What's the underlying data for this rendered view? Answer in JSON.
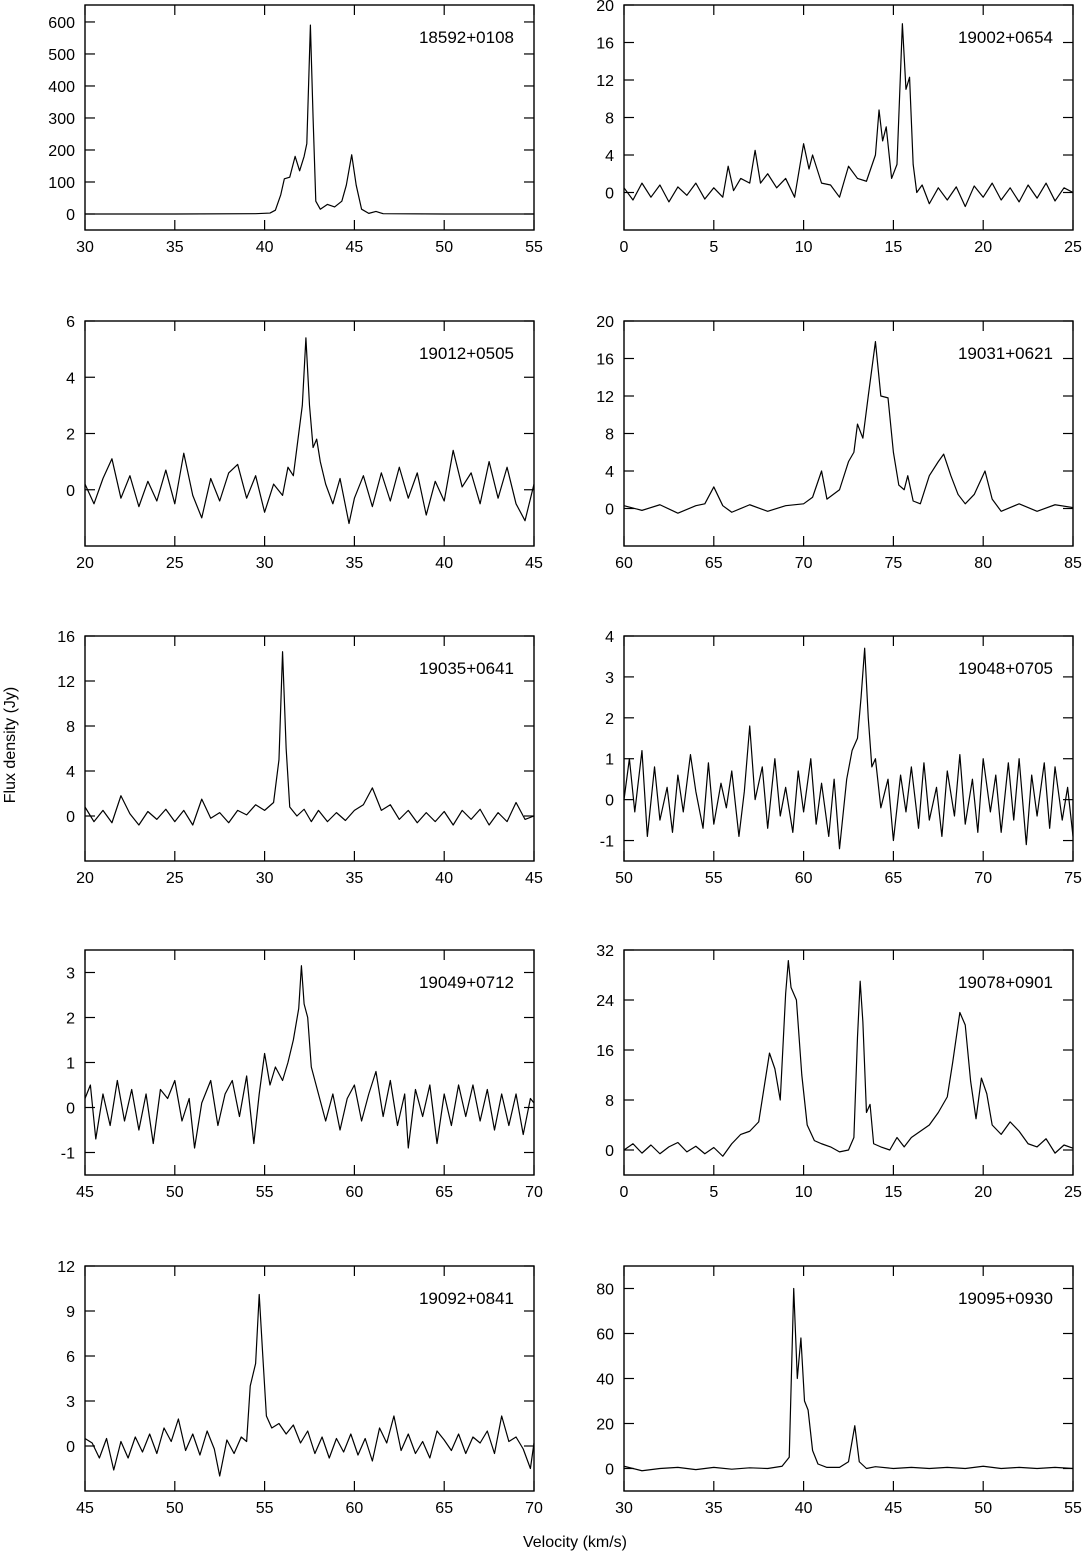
{
  "axis_labels": {
    "x": "Velocity (km/s)",
    "y": "Flux density (Jy)"
  },
  "chart_data": [
    {
      "type": "line",
      "title": "18592+0108",
      "xlim": [
        30,
        55
      ],
      "xticks": [
        30,
        35,
        40,
        45,
        50,
        55
      ],
      "ylim": [
        -50,
        653
      ],
      "yticks": [
        0,
        100,
        200,
        300,
        400,
        500,
        600
      ],
      "x": [
        30,
        35,
        39.5,
        40.3,
        40.6,
        40.9,
        41.1,
        41.4,
        41.7,
        41.95,
        42.2,
        42.35,
        42.55,
        42.7,
        42.85,
        43.1,
        43.5,
        43.9,
        44.3,
        44.55,
        44.85,
        45.1,
        45.4,
        45.8,
        46.2,
        46.6,
        50,
        55
      ],
      "values": [
        0,
        0,
        1,
        3,
        12,
        60,
        110,
        115,
        180,
        135,
        180,
        220,
        590,
        300,
        40,
        15,
        30,
        22,
        40,
        90,
        185,
        90,
        15,
        2,
        8,
        1,
        0,
        0
      ]
    },
    {
      "type": "line",
      "title": "19002+0654",
      "xlim": [
        0,
        25
      ],
      "xticks": [
        0,
        5,
        10,
        15,
        20,
        25
      ],
      "ylim": [
        -4,
        20
      ],
      "yticks": [
        0,
        4,
        8,
        12,
        16,
        20
      ],
      "x": [
        0,
        0.5,
        1,
        1.5,
        2,
        2.5,
        3,
        3.5,
        4,
        4.5,
        5,
        5.5,
        5.8,
        6.1,
        6.5,
        7,
        7.3,
        7.6,
        8,
        8.5,
        9,
        9.5,
        10,
        10.3,
        10.5,
        11,
        11.5,
        12,
        12.5,
        13,
        13.5,
        14,
        14.2,
        14.4,
        14.6,
        14.9,
        15.2,
        15.5,
        15.7,
        15.9,
        16.1,
        16.3,
        16.6,
        17,
        17.5,
        18,
        18.5,
        19,
        19.5,
        20,
        20.5,
        21,
        21.5,
        22,
        22.5,
        23,
        23.5,
        24,
        24.5,
        25
      ],
      "values": [
        0.5,
        -0.8,
        1,
        -0.5,
        0.8,
        -1,
        0.6,
        -0.3,
        1,
        -0.7,
        0.5,
        -0.5,
        2.8,
        0.2,
        1.5,
        1,
        4.5,
        1,
        2,
        0.5,
        1.5,
        -0.5,
        5.2,
        2.5,
        4,
        1,
        0.8,
        -0.5,
        2.8,
        1.5,
        1.2,
        4,
        8.8,
        5.5,
        7,
        1.5,
        3,
        18,
        11,
        12.3,
        3,
        0,
        0.8,
        -1.2,
        0.5,
        -0.8,
        0.6,
        -1.5,
        0.7,
        -0.5,
        1,
        -0.8,
        0.5,
        -1,
        0.8,
        -0.6,
        1,
        -0.9,
        0.5,
        0
      ]
    },
    {
      "type": "line",
      "title": "19012+0505",
      "xlim": [
        20,
        45
      ],
      "xticks": [
        20,
        25,
        30,
        35,
        40,
        45
      ],
      "ylim": [
        -2,
        6
      ],
      "yticks": [
        0,
        2,
        4,
        6
      ],
      "x": [
        20,
        20.5,
        21,
        21.5,
        22,
        22.5,
        23,
        23.5,
        24,
        24.5,
        25,
        25.5,
        26,
        26.5,
        27,
        27.5,
        28,
        28.5,
        29,
        29.5,
        30,
        30.5,
        31,
        31.3,
        31.6,
        31.9,
        32.1,
        32.3,
        32.5,
        32.7,
        32.9,
        33.1,
        33.4,
        33.8,
        34.2,
        34.7,
        35,
        35.5,
        36,
        36.5,
        37,
        37.5,
        38,
        38.5,
        39,
        39.5,
        40,
        40.5,
        41,
        41.5,
        42,
        42.5,
        43,
        43.5,
        44,
        44.5,
        45
      ],
      "values": [
        0.2,
        -0.5,
        0.4,
        1.1,
        -0.3,
        0.5,
        -0.6,
        0.3,
        -0.4,
        0.7,
        -0.5,
        1.3,
        -0.2,
        -1,
        0.4,
        -0.4,
        0.6,
        0.9,
        -0.3,
        0.5,
        -0.8,
        0.2,
        -0.2,
        0.8,
        0.5,
        2,
        3,
        5.4,
        3,
        1.5,
        1.8,
        1,
        0.2,
        -0.5,
        0.4,
        -1.2,
        -0.3,
        0.5,
        -0.6,
        0.6,
        -0.4,
        0.8,
        -0.3,
        0.6,
        -0.9,
        0.3,
        -0.4,
        1.4,
        0.1,
        0.6,
        -0.5,
        1,
        -0.3,
        0.8,
        -0.5,
        -1.1,
        0.2
      ]
    },
    {
      "type": "line",
      "title": "19031+0621",
      "xlim": [
        60,
        85
      ],
      "xticks": [
        60,
        65,
        70,
        75,
        80,
        85
      ],
      "ylim": [
        -4,
        20
      ],
      "yticks": [
        0,
        4,
        8,
        12,
        16,
        20
      ],
      "x": [
        60,
        61,
        62,
        63,
        64,
        64.5,
        65,
        65.5,
        66,
        67,
        68,
        69,
        70,
        70.5,
        71,
        71.3,
        72,
        72.5,
        72.8,
        73,
        73.3,
        73.6,
        74,
        74.3,
        74.7,
        75,
        75.3,
        75.6,
        75.8,
        76.1,
        76.5,
        77,
        77.5,
        77.8,
        78.2,
        78.6,
        79,
        79.5,
        80.1,
        80.5,
        81,
        82,
        83,
        84,
        85
      ],
      "values": [
        0.3,
        -0.2,
        0.4,
        -0.5,
        0.3,
        0.5,
        2.3,
        0.3,
        -0.4,
        0.4,
        -0.3,
        0.3,
        0.5,
        1.2,
        4,
        1,
        2,
        5,
        6,
        9,
        7.5,
        12,
        17.8,
        12,
        11.8,
        6,
        2.5,
        2,
        3.5,
        0.8,
        0.5,
        3.5,
        5,
        5.8,
        3.5,
        1.5,
        0.5,
        1.5,
        4,
        1,
        -0.3,
        0.5,
        -0.3,
        0.4,
        0.1
      ]
    },
    {
      "type": "line",
      "title": "19035+0641",
      "xlim": [
        20,
        45
      ],
      "xticks": [
        20,
        25,
        30,
        35,
        40,
        45
      ],
      "ylim": [
        -4,
        16
      ],
      "yticks": [
        0,
        4,
        8,
        12,
        16
      ],
      "x": [
        20,
        20.5,
        21,
        21.5,
        22,
        22.5,
        23,
        23.5,
        24,
        24.5,
        25,
        25.5,
        26,
        26.5,
        27,
        27.5,
        28,
        28.5,
        29,
        29.5,
        30,
        30.5,
        30.8,
        31,
        31.2,
        31.4,
        31.8,
        32.2,
        32.6,
        33,
        33.5,
        34,
        34.5,
        35,
        35.5,
        36,
        36.5,
        37,
        37.5,
        38,
        38.5,
        39,
        39.5,
        40,
        40.5,
        41,
        41.5,
        42,
        42.5,
        43,
        43.5,
        44,
        44.5,
        45
      ],
      "values": [
        0.8,
        -0.5,
        0.5,
        -0.6,
        1.8,
        0.2,
        -0.8,
        0.4,
        -0.3,
        0.6,
        -0.5,
        0.5,
        -0.8,
        1.5,
        -0.2,
        0.3,
        -0.6,
        0.5,
        0.1,
        1,
        0.5,
        1.2,
        5,
        14.6,
        6,
        0.8,
        0,
        0.6,
        -0.5,
        0.5,
        -0.5,
        0.3,
        -0.4,
        0.5,
        1,
        2.5,
        0.5,
        1,
        -0.3,
        0.5,
        -0.6,
        0.3,
        -0.5,
        0.4,
        -0.8,
        0.5,
        -0.3,
        0.6,
        -0.8,
        0.3,
        -0.5,
        1.2,
        -0.3,
        0
      ]
    },
    {
      "type": "line",
      "title": "19048+0705",
      "xlim": [
        50,
        75
      ],
      "xticks": [
        50,
        55,
        60,
        65,
        70,
        75
      ],
      "ylim": [
        -1.5,
        4
      ],
      "yticks": [
        -1,
        0,
        1,
        2,
        3,
        4
      ],
      "x": [
        50,
        50.3,
        50.6,
        51,
        51.3,
        51.7,
        52,
        52.4,
        52.7,
        53,
        53.3,
        53.7,
        54,
        54.4,
        54.7,
        55,
        55.4,
        55.7,
        56,
        56.4,
        56.7,
        57,
        57.3,
        57.7,
        58,
        58.4,
        58.7,
        59,
        59.4,
        59.7,
        60,
        60.4,
        60.7,
        61,
        61.4,
        61.7,
        62,
        62.4,
        62.7,
        63,
        63.2,
        63.4,
        63.6,
        63.8,
        64,
        64.3,
        64.7,
        65,
        65.4,
        65.7,
        66,
        66.4,
        66.7,
        67,
        67.4,
        67.7,
        68,
        68.4,
        68.7,
        69,
        69.4,
        69.7,
        70,
        70.4,
        70.7,
        71,
        71.4,
        71.7,
        72,
        72.4,
        72.7,
        73,
        73.4,
        73.7,
        74,
        74.4,
        74.7,
        75
      ],
      "values": [
        0,
        1,
        -0.3,
        1.2,
        -0.9,
        0.8,
        -0.5,
        0.3,
        -0.8,
        0.6,
        -0.3,
        1.1,
        0.2,
        -0.7,
        0.9,
        -0.6,
        0.4,
        -0.2,
        0.7,
        -0.9,
        0.2,
        1.8,
        0,
        0.8,
        -0.7,
        1,
        -0.4,
        0.3,
        -0.8,
        0.7,
        -0.3,
        1,
        -0.6,
        0.4,
        -0.9,
        0.5,
        -1.2,
        0.5,
        1.2,
        1.5,
        2.5,
        3.7,
        2,
        0.8,
        1,
        -0.2,
        0.5,
        -1,
        0.6,
        -0.3,
        0.8,
        -0.7,
        0.9,
        -0.5,
        0.3,
        -0.9,
        0.7,
        -0.4,
        1.1,
        -0.6,
        0.5,
        -0.8,
        1,
        -0.3,
        0.6,
        -0.8,
        0.9,
        -0.5,
        1,
        -1.1,
        0.6,
        -0.4,
        0.9,
        -0.7,
        0.8,
        -0.5,
        0.3,
        -0.9
      ]
    },
    {
      "type": "line",
      "title": "19049+0712",
      "xlim": [
        45,
        70
      ],
      "xticks": [
        45,
        50,
        55,
        60,
        65,
        70
      ],
      "ylim": [
        -1.5,
        3.5
      ],
      "yticks": [
        -1,
        0,
        1,
        2,
        3
      ],
      "x": [
        45,
        45.3,
        45.6,
        46,
        46.4,
        46.8,
        47.2,
        47.6,
        48,
        48.4,
        48.8,
        49.2,
        49.6,
        50,
        50.4,
        50.8,
        51.1,
        51.5,
        52,
        52.4,
        52.8,
        53.2,
        53.6,
        54,
        54.4,
        54.7,
        55,
        55.3,
        55.6,
        56,
        56.3,
        56.6,
        56.9,
        57.05,
        57.2,
        57.4,
        57.6,
        58,
        58.4,
        58.8,
        59.2,
        59.6,
        60,
        60.4,
        60.8,
        61.2,
        61.6,
        62,
        62.4,
        62.8,
        63,
        63.4,
        63.8,
        64.2,
        64.6,
        65,
        65.4,
        65.8,
        66.2,
        66.6,
        67,
        67.4,
        67.8,
        68.2,
        68.6,
        69,
        69.4,
        69.8,
        70
      ],
      "values": [
        0.2,
        0.5,
        -0.7,
        0.3,
        -0.4,
        0.6,
        -0.3,
        0.4,
        -0.5,
        0.3,
        -0.8,
        0.4,
        0.2,
        0.6,
        -0.3,
        0.2,
        -0.9,
        0.1,
        0.6,
        -0.4,
        0.3,
        0.6,
        -0.2,
        0.7,
        -0.8,
        0.3,
        1.2,
        0.5,
        0.9,
        0.6,
        1,
        1.5,
        2.2,
        3.15,
        2.3,
        2,
        0.9,
        0.3,
        -0.3,
        0.3,
        -0.5,
        0.2,
        0.5,
        -0.3,
        0.3,
        0.8,
        -0.2,
        0.6,
        -0.4,
        0.3,
        -0.9,
        0.4,
        -0.2,
        0.5,
        -0.8,
        0.3,
        -0.4,
        0.5,
        -0.2,
        0.5,
        -0.3,
        0.4,
        -0.5,
        0.3,
        -0.4,
        0.3,
        -0.6,
        0.2,
        0.1
      ]
    },
    {
      "type": "line",
      "title": "19078+0901",
      "xlim": [
        0,
        25
      ],
      "xticks": [
        0,
        5,
        10,
        15,
        20,
        25
      ],
      "ylim": [
        -4,
        32
      ],
      "yticks": [
        0,
        8,
        16,
        24,
        32
      ],
      "x": [
        0,
        0.5,
        1,
        1.5,
        2,
        2.5,
        3,
        3.5,
        4,
        4.5,
        5,
        5.5,
        6,
        6.5,
        7,
        7.5,
        7.8,
        8.1,
        8.4,
        8.7,
        9,
        9.15,
        9.3,
        9.6,
        9.9,
        10.2,
        10.6,
        11,
        11.5,
        12,
        12.5,
        12.8,
        13,
        13.15,
        13.3,
        13.5,
        13.7,
        13.9,
        14.3,
        14.8,
        15.2,
        15.6,
        16,
        16.5,
        17,
        17.5,
        18,
        18.3,
        18.7,
        19,
        19.3,
        19.6,
        19.9,
        20.2,
        20.5,
        21,
        21.5,
        22,
        22.5,
        23,
        23.5,
        24,
        24.5,
        25
      ],
      "values": [
        0,
        1,
        -0.5,
        0.8,
        -0.6,
        0.5,
        1.2,
        -0.3,
        0.6,
        -0.6,
        0.4,
        -1,
        1,
        2.5,
        3,
        4.5,
        10,
        15.5,
        13,
        8,
        25,
        30.3,
        26,
        24,
        12,
        4,
        1.5,
        1,
        0.5,
        -0.3,
        0,
        2,
        18,
        27,
        20.5,
        6,
        7.3,
        1,
        0.5,
        0,
        2,
        0.5,
        2,
        3,
        4,
        6,
        8.5,
        14,
        22,
        20,
        11,
        5,
        11.5,
        9,
        4,
        2.5,
        4.5,
        3,
        1,
        0.5,
        1.8,
        -0.5,
        0.8,
        0.3
      ]
    },
    {
      "type": "line",
      "title": "19092+0841",
      "xlim": [
        45,
        70
      ],
      "xticks": [
        45,
        50,
        55,
        60,
        65,
        70
      ],
      "ylim": [
        -3,
        12
      ],
      "yticks": [
        0,
        3,
        6,
        9,
        12
      ],
      "x": [
        45,
        45.4,
        45.8,
        46.2,
        46.6,
        47,
        47.4,
        47.8,
        48.2,
        48.6,
        49,
        49.4,
        49.8,
        50.2,
        50.6,
        51,
        51.4,
        51.8,
        52.2,
        52.5,
        52.9,
        53.3,
        53.7,
        54,
        54.2,
        54.5,
        54.7,
        54.9,
        55.1,
        55.4,
        55.8,
        56.2,
        56.6,
        57,
        57.4,
        57.8,
        58.2,
        58.6,
        59,
        59.4,
        59.8,
        60.2,
        60.6,
        61,
        61.4,
        61.8,
        62.2,
        62.6,
        63,
        63.4,
        63.8,
        64.2,
        64.6,
        65,
        65.4,
        65.8,
        66.2,
        66.6,
        67,
        67.4,
        67.8,
        68.2,
        68.6,
        69,
        69.4,
        69.8,
        70
      ],
      "values": [
        0.5,
        0.2,
        -0.8,
        0.5,
        -1.6,
        0.3,
        -0.8,
        0.6,
        -0.4,
        0.8,
        -0.5,
        1.2,
        0.3,
        1.8,
        -0.3,
        0.8,
        -0.6,
        1,
        -0.2,
        -2,
        0.4,
        -0.5,
        0.6,
        0.3,
        4,
        5.5,
        10.1,
        6,
        2,
        1.2,
        1.5,
        0.8,
        1.4,
        0.2,
        1,
        -0.5,
        0.6,
        -0.8,
        0.5,
        -0.4,
        0.8,
        -0.6,
        0.5,
        -1,
        1.2,
        0.2,
        2,
        -0.3,
        0.8,
        -0.5,
        0.3,
        -0.8,
        1,
        0.4,
        -0.3,
        0.8,
        -0.5,
        0.6,
        0.2,
        1,
        -0.5,
        2,
        0.3,
        0.6,
        -0.2,
        -1.5,
        0.2
      ]
    },
    {
      "type": "line",
      "title": "19095+0930",
      "xlim": [
        30,
        55
      ],
      "xticks": [
        30,
        35,
        40,
        45,
        50,
        55
      ],
      "ylim": [
        -10,
        90
      ],
      "yticks": [
        0,
        20,
        40,
        60,
        80
      ],
      "x": [
        30,
        31,
        32,
        33,
        34,
        35,
        36,
        37,
        38,
        38.8,
        39.2,
        39.45,
        39.65,
        39.85,
        40.05,
        40.25,
        40.5,
        40.8,
        41.3,
        42,
        42.5,
        42.85,
        43.1,
        43.5,
        44,
        45,
        46,
        47,
        48,
        49,
        50,
        51,
        52,
        53,
        54,
        55
      ],
      "values": [
        1,
        -1,
        0,
        0.5,
        -0.5,
        0.5,
        -0.3,
        0.3,
        0,
        1,
        5,
        80,
        40,
        58,
        30,
        26,
        8,
        2,
        0.5,
        0.5,
        3,
        19,
        3,
        0,
        0.8,
        0,
        0.5,
        0,
        0.5,
        0,
        1,
        0,
        0.5,
        0,
        0.5,
        0
      ]
    }
  ]
}
